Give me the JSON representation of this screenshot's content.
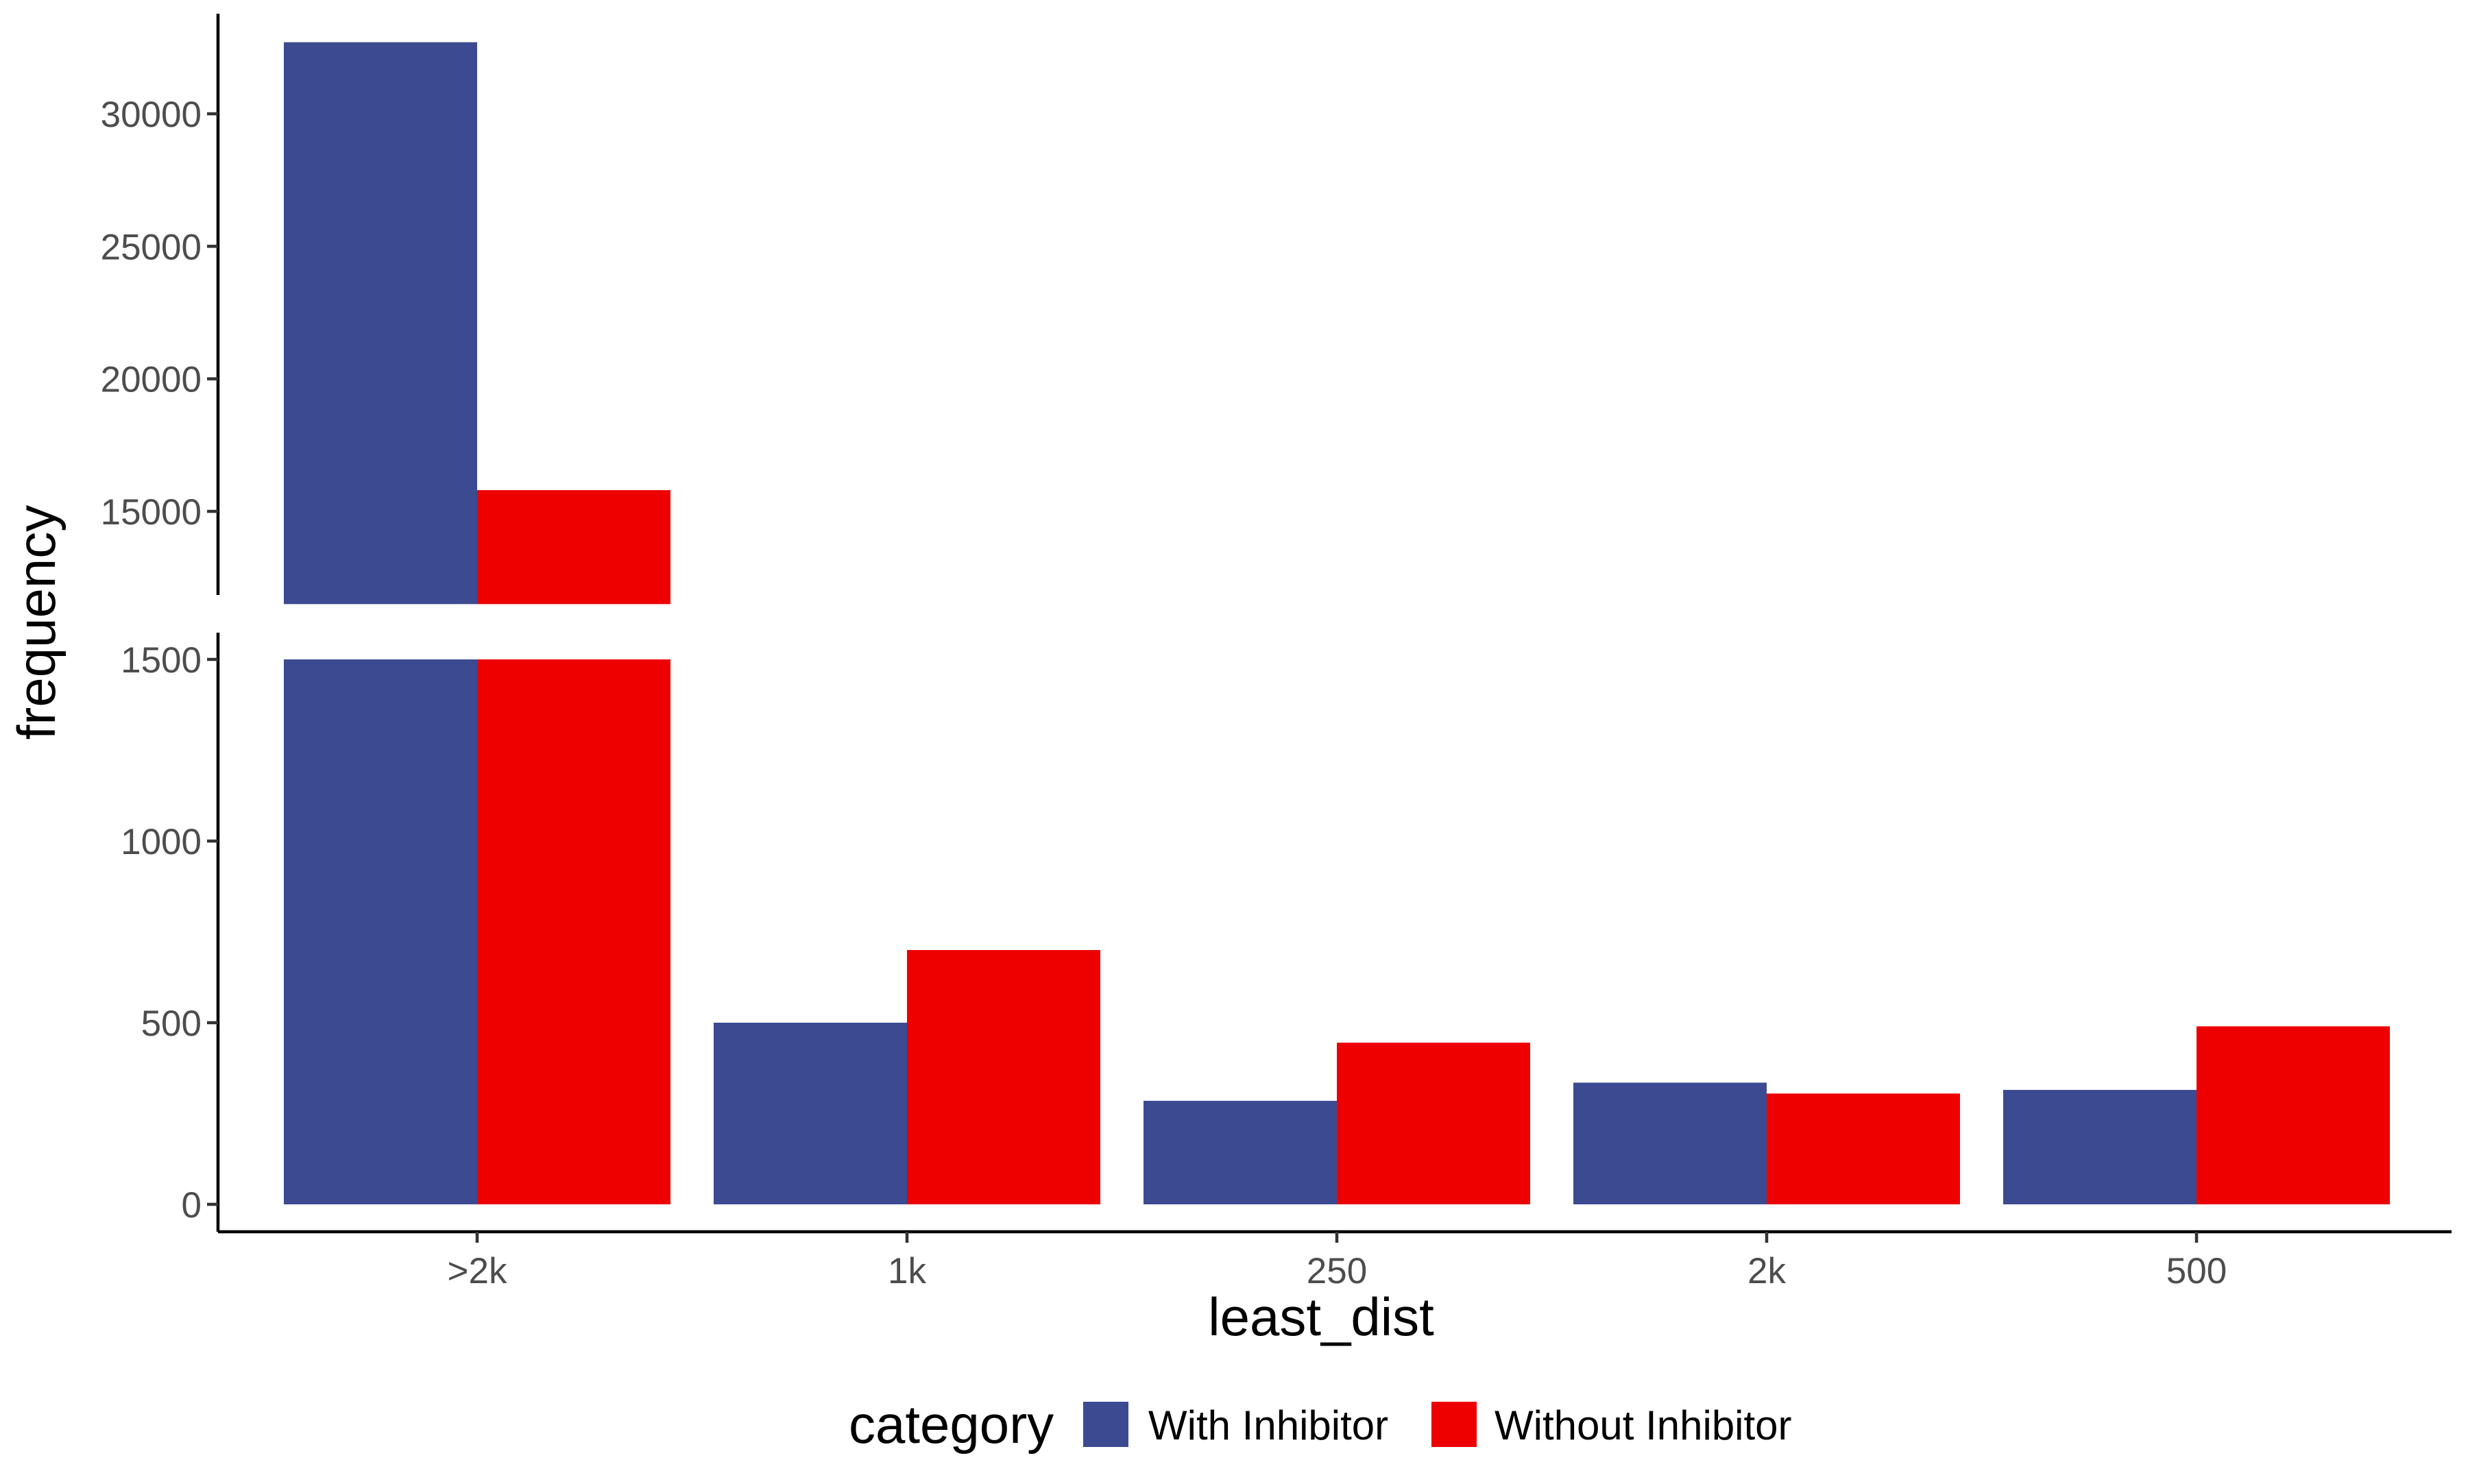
{
  "chart_data": {
    "type": "bar",
    "subtype": "grouped-bar-with-broken-y-axis",
    "title": "",
    "xlabel": "least_dist",
    "ylabel": "frequency",
    "categories": [
      ">2k",
      "1k",
      "250",
      "2k",
      "500"
    ],
    "series": [
      {
        "name": "With Inhibitor",
        "values": [
          32700,
          500,
          285,
          335,
          315
        ]
      },
      {
        "name": "Without Inhibitor",
        "values": [
          15800,
          700,
          445,
          305,
          490
        ]
      }
    ],
    "colors": {
      "With Inhibitor": "#3C4A91",
      "Without Inhibitor": "#EE0000"
    },
    "y_axis_break": {
      "lower_range": [
        0,
        1500
      ],
      "upper_range": [
        11500,
        33000
      ],
      "lower_ticks": [
        0,
        500,
        1000,
        1500
      ],
      "upper_ticks": [
        15000,
        20000,
        25000,
        30000
      ],
      "lower_tick_labels": [
        "0",
        "500",
        "1000",
        "1500"
      ],
      "upper_tick_labels": [
        "15000",
        "20000",
        "25000",
        "30000"
      ]
    },
    "grid": false,
    "legend": {
      "title": "category",
      "position": "bottom"
    }
  }
}
